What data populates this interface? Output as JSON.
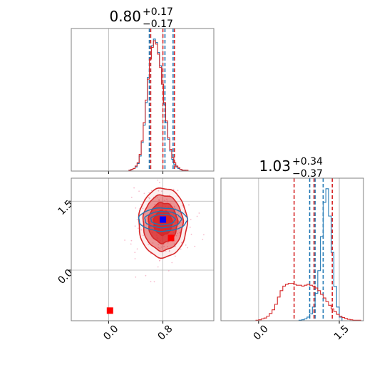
{
  "chart_data": [
    {
      "type": "histogram",
      "panel": "marginal-param1",
      "title": {
        "main": "0.80",
        "sup": "+0.17",
        "sub": "−0.17"
      },
      "xlim": [
        -0.55,
        1.55
      ],
      "x_ticks": [
        0.0,
        0.8
      ],
      "grid": true,
      "series": [
        {
          "color": "#1f77b4",
          "bin_edges": [
            0.3,
            0.33,
            0.36,
            0.39,
            0.42,
            0.45,
            0.48,
            0.51,
            0.54,
            0.57,
            0.6,
            0.63,
            0.66,
            0.69,
            0.72,
            0.75,
            0.78,
            0.81,
            0.84,
            0.87,
            0.9,
            0.93,
            0.96,
            0.99,
            1.02,
            1.05,
            1.08,
            1.11,
            1.14,
            1.17,
            1.2,
            1.23,
            1.26,
            1.29,
            1.32
          ],
          "counts": [
            1,
            2,
            3,
            5,
            9,
            18,
            34,
            55,
            82,
            112,
            135,
            150,
            158,
            154,
            142,
            126,
            104,
            80,
            58,
            38,
            24,
            14,
            8,
            5,
            3,
            2,
            1,
            1,
            0,
            0,
            0,
            0,
            0,
            0
          ],
          "quantiles": [
            0.6,
            0.83,
            0.95
          ]
        },
        {
          "color": "#d62728",
          "bin_edges": [
            0.3,
            0.33,
            0.36,
            0.39,
            0.42,
            0.45,
            0.48,
            0.51,
            0.54,
            0.57,
            0.6,
            0.63,
            0.66,
            0.69,
            0.72,
            0.75,
            0.78,
            0.81,
            0.84,
            0.87,
            0.9,
            0.93,
            0.96,
            0.99,
            1.02,
            1.05,
            1.08,
            1.11,
            1.14,
            1.17,
            1.2,
            1.23,
            1.26,
            1.29,
            1.32
          ],
          "counts": [
            1,
            2,
            3,
            6,
            10,
            20,
            36,
            58,
            85,
            110,
            134,
            148,
            156,
            152,
            140,
            124,
            104,
            82,
            60,
            40,
            26,
            16,
            10,
            6,
            4,
            2,
            1,
            1,
            1,
            0,
            0,
            0,
            0,
            0
          ],
          "quantiles": [
            0.62,
            0.8,
            0.97
          ]
        }
      ]
    },
    {
      "type": "histogram",
      "panel": "marginal-param2",
      "title": {
        "main": "1.03",
        "sup": "+0.34",
        "sub": "−0.37"
      },
      "xlim": [
        -0.7,
        1.95
      ],
      "x_ticks": [
        0.0,
        1.5
      ],
      "grid": true,
      "series": [
        {
          "color": "#1f77b4",
          "bin_edges": [
            0.7,
            0.75,
            0.8,
            0.85,
            0.9,
            0.95,
            1.0,
            1.05,
            1.1,
            1.15,
            1.2,
            1.25,
            1.3,
            1.35,
            1.4,
            1.45,
            1.5,
            1.55
          ],
          "counts": [
            0,
            1,
            2,
            4,
            8,
            15,
            30,
            60,
            110,
            185,
            260,
            290,
            230,
            150,
            75,
            30,
            8
          ],
          "quantiles": [
            0.95,
            1.05,
            1.2
          ]
        },
        {
          "color": "#d62728",
          "bin_edges": [
            -0.1,
            -0.05,
            0.0,
            0.05,
            0.1,
            0.15,
            0.2,
            0.25,
            0.3,
            0.35,
            0.4,
            0.45,
            0.5,
            0.55,
            0.6,
            0.65,
            0.7,
            0.75,
            0.8,
            0.85,
            0.9,
            0.95,
            1.0,
            1.05,
            1.1,
            1.15,
            1.2,
            1.25,
            1.3,
            1.35,
            1.4,
            1.45,
            1.5,
            1.55,
            1.6,
            1.65,
            1.7,
            1.75,
            1.8,
            1.85,
            1.9,
            1.95
          ],
          "counts": [
            0,
            1,
            2,
            4,
            6,
            10,
            16,
            24,
            36,
            52,
            66,
            76,
            80,
            82,
            82,
            80,
            78,
            78,
            76,
            78,
            80,
            78,
            76,
            72,
            66,
            58,
            50,
            42,
            34,
            26,
            20,
            14,
            10,
            7,
            5,
            3,
            2,
            1,
            1,
            1,
            0
          ],
          "quantiles": [
            0.66,
            1.03,
            1.37
          ]
        }
      ]
    },
    {
      "type": "scatter_contour",
      "panel": "joint",
      "xlim": [
        -0.55,
        1.55
      ],
      "ylim": [
        -1.1,
        2.0
      ],
      "x_ticks": [
        0.0,
        0.8
      ],
      "y_ticks": [
        0.0,
        1.5
      ],
      "grid": true,
      "series": [
        {
          "color": "#d62728",
          "center": [
            0.8,
            1.03
          ],
          "spread": [
            0.17,
            0.36
          ],
          "levels": [
            {
              "scale": [
                1.0,
                1.0
              ],
              "fill_opacity": 0.08
            },
            {
              "scale": [
                0.82,
                0.8
              ],
              "fill_opacity": 0.45
            },
            {
              "scale": [
                0.6,
                0.58
              ],
              "fill_opacity": 0.7
            },
            {
              "scale": [
                0.38,
                0.35
              ],
              "fill_opacity": 0.9
            }
          ]
        },
        {
          "color": "#1f77b4",
          "center": [
            0.8,
            1.1
          ],
          "spread": [
            0.17,
            0.12
          ],
          "levels": [
            {
              "scale": [
                1.0,
                1.0
              ],
              "fill_opacity": 0
            },
            {
              "scale": [
                0.75,
                0.7
              ],
              "fill_opacity": 0
            },
            {
              "scale": [
                0.5,
                0.45
              ],
              "fill_opacity": 0
            }
          ]
        }
      ],
      "markers": [
        {
          "x": 0.8,
          "y": 1.1,
          "color": "#0000ff"
        },
        {
          "x": 0.92,
          "y": 0.7,
          "color": "#ff0000"
        },
        {
          "x": 0.02,
          "y": -0.88,
          "color": "#ff0000"
        }
      ]
    }
  ]
}
